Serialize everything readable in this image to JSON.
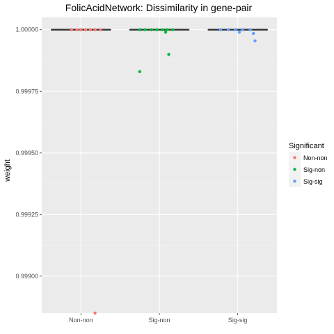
{
  "chart_data": {
    "type": "boxplot",
    "title": "FolicAcidNetwork: Dissimilarity in gene-pair",
    "xlabel": "",
    "ylabel": "weight",
    "ylim": [
      0.99885,
      1.00005
    ],
    "y_ticks": [
      1.0,
      0.99975,
      0.9995,
      0.99925,
      0.999
    ],
    "y_tick_labels": [
      "1.00000",
      "0.99975",
      "0.99950",
      "0.99925",
      "0.99900"
    ],
    "categories": [
      "Non-non",
      "Sig-non",
      "Sig-sig"
    ],
    "grid": true,
    "legend_position": "right",
    "legend": {
      "title": "Significant",
      "entries": [
        "Non-non",
        "Sig-non",
        "Sig-sig"
      ]
    },
    "series": [
      {
        "name": "Non-non",
        "color": "#F8766D",
        "box": {
          "q1": 1.0,
          "median": 1.0,
          "q3": 1.0,
          "whisker_low": 1.0,
          "whisker_high": 1.0
        },
        "points": [
          {
            "jitter": -0.12,
            "y": 1.0
          },
          {
            "jitter": -0.05,
            "y": 1.0
          },
          {
            "jitter": 0.0,
            "y": 1.0
          },
          {
            "jitter": 0.06,
            "y": 1.0
          },
          {
            "jitter": 0.12,
            "y": 1.0
          },
          {
            "jitter": 0.18,
            "y": 1.0
          },
          {
            "jitter": 0.25,
            "y": 1.0
          },
          {
            "jitter": 0.18,
            "y": 0.99885
          }
        ]
      },
      {
        "name": "Sig-non",
        "color": "#00BA38",
        "box": {
          "q1": 1.0,
          "median": 1.0,
          "q3": 1.0,
          "whisker_low": 1.0,
          "whisker_high": 1.0
        },
        "points": [
          {
            "jitter": -0.25,
            "y": 1.0
          },
          {
            "jitter": -0.18,
            "y": 1.0
          },
          {
            "jitter": -0.1,
            "y": 1.0
          },
          {
            "jitter": -0.03,
            "y": 1.0
          },
          {
            "jitter": 0.04,
            "y": 1.0
          },
          {
            "jitter": 0.1,
            "y": 1.0
          },
          {
            "jitter": 0.17,
            "y": 1.0
          },
          {
            "jitter": 0.08,
            "y": 0.99999
          },
          {
            "jitter": -0.25,
            "y": 0.99983
          },
          {
            "jitter": 0.12,
            "y": 0.9999
          }
        ]
      },
      {
        "name": "Sig-sig",
        "color": "#619CFF",
        "box": {
          "q1": 1.0,
          "median": 1.0,
          "q3": 1.0,
          "whisker_low": 1.0,
          "whisker_high": 1.0
        },
        "points": [
          {
            "jitter": -0.22,
            "y": 1.0
          },
          {
            "jitter": -0.12,
            "y": 1.0
          },
          {
            "jitter": -0.03,
            "y": 1.0
          },
          {
            "jitter": 0.06,
            "y": 1.0
          },
          {
            "jitter": 0.16,
            "y": 1.0
          },
          {
            "jitter": 0.02,
            "y": 0.99999
          },
          {
            "jitter": 0.2,
            "y": 0.999985
          },
          {
            "jitter": 0.22,
            "y": 0.999955
          }
        ]
      }
    ]
  }
}
